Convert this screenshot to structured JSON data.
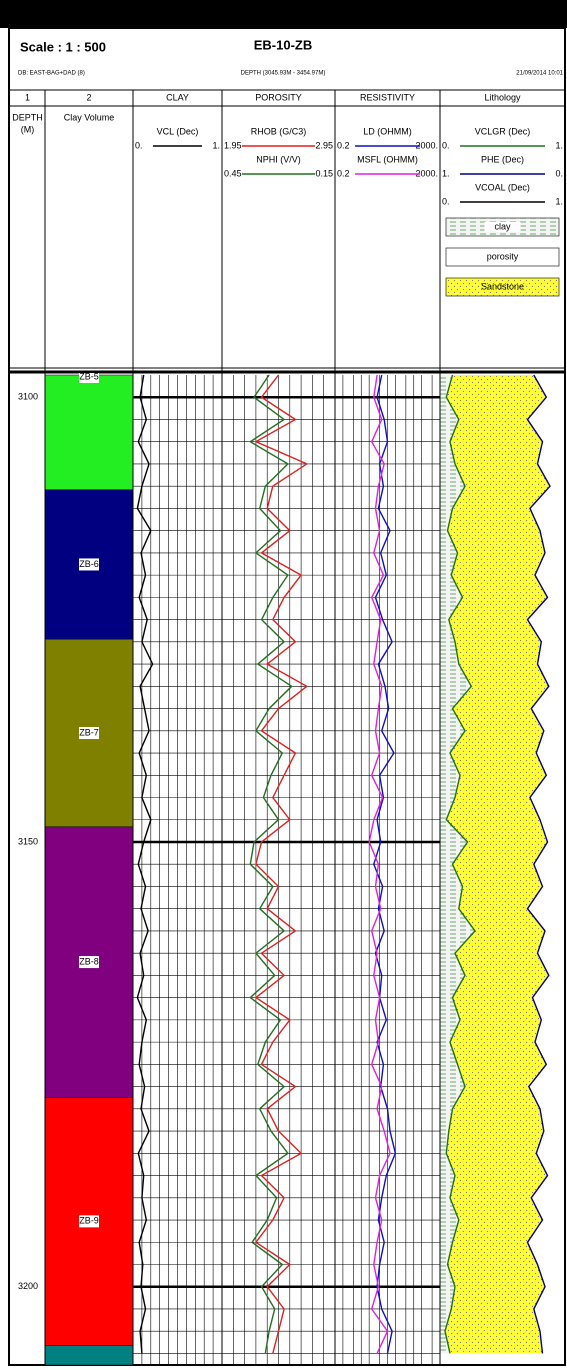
{
  "header": {
    "scale": "Scale : 1 : 500",
    "title": "EB-10-ZB",
    "database": "DB: EAST-BAG+DAD (8)",
    "depth_interval": "DEPTH (3045.93M - 3454.97M)",
    "date": "21/09/2014 10:01"
  },
  "tracks": [
    {
      "heading": "1",
      "label": "DEPTH",
      "unit": "(M)"
    },
    {
      "heading": "2",
      "label": "Clay Volume"
    },
    {
      "heading": "CLAY",
      "curves": [
        {
          "name": "VCL (Dec)",
          "color": "#000000",
          "left": {
            "value": 0,
            "label": "0."
          },
          "right": {
            "value": 1,
            "label": "1."
          },
          "values": [
            0.12,
            0.08,
            0.15,
            0.06,
            0.18,
            0.1,
            0.05,
            0.2,
            0.09,
            0.14,
            0.07,
            0.16,
            0.1,
            0.22,
            0.08,
            0.13,
            0.18,
            0.07,
            0.15,
            0.1,
            0.2,
            0.12,
            0.06,
            0.14,
            0.09,
            0.17,
            0.08,
            0.12,
            0.05,
            0.15,
            0.1,
            0.07,
            0.13,
            0.09,
            0.18,
            0.06,
            0.12,
            0.1,
            0.15,
            0.07,
            0.11,
            0.09,
            0.14,
            0.08,
            0.1
          ]
        }
      ]
    },
    {
      "heading": "POROSITY",
      "curves": [
        {
          "name": "RHOB (G/C3)",
          "color": "#e02020",
          "left": 1.95,
          "right": 2.95,
          "values": [
            2.45,
            2.3,
            2.6,
            2.25,
            2.7,
            2.4,
            2.35,
            2.55,
            2.3,
            2.65,
            2.5,
            2.4,
            2.6,
            2.35,
            2.7,
            2.45,
            2.3,
            2.6,
            2.5,
            2.4,
            2.55,
            2.3,
            2.25,
            2.45,
            2.35,
            2.6,
            2.3,
            2.5,
            2.25,
            2.55,
            2.4,
            2.3,
            2.6,
            2.35,
            2.45,
            2.65,
            2.3,
            2.5,
            2.4,
            2.25,
            2.55,
            2.35,
            2.5,
            2.45,
            2.4
          ]
        },
        {
          "name": "NPHI (V/V)",
          "color": "#207020",
          "left": 0.45,
          "right": -0.15,
          "values": [
            0.2,
            0.28,
            0.12,
            0.3,
            0.1,
            0.22,
            0.25,
            0.14,
            0.27,
            0.1,
            0.18,
            0.24,
            0.12,
            0.26,
            0.08,
            0.2,
            0.27,
            0.13,
            0.19,
            0.23,
            0.15,
            0.28,
            0.3,
            0.18,
            0.25,
            0.12,
            0.27,
            0.17,
            0.3,
            0.14,
            0.22,
            0.26,
            0.12,
            0.25,
            0.19,
            0.1,
            0.27,
            0.16,
            0.21,
            0.29,
            0.13,
            0.24,
            0.17,
            0.2,
            0.22
          ]
        }
      ]
    },
    {
      "heading": "RESISTIVITY",
      "log_scale": true,
      "curves": [
        {
          "name": "LD (OHMM)",
          "color": "#1010c0",
          "left": 0.2,
          "right": {
            "value": 2000,
            "label": "2000."
          },
          "values": [
            12,
            8,
            15,
            20,
            10,
            14,
            9,
            25,
            11,
            18,
            7,
            13,
            30,
            9,
            16,
            22,
            12,
            35,
            10,
            14,
            8,
            11,
            6,
            13,
            9,
            15,
            7,
            12,
            10,
            18,
            8,
            14,
            11,
            20,
            25,
            40,
            18,
            12,
            9,
            15,
            10,
            8,
            12,
            30,
            20
          ]
        },
        {
          "name": "MSFL (OHMM)",
          "color": "#e020e0",
          "left": 0.2,
          "right": {
            "value": 2000,
            "label": "2000."
          },
          "values": [
            8,
            6,
            12,
            5,
            15,
            9,
            7,
            10,
            6,
            14,
            5,
            11,
            8,
            6,
            12,
            9,
            7,
            10,
            5,
            13,
            6,
            4,
            9,
            7,
            11,
            5,
            8,
            6,
            10,
            7,
            9,
            5,
            12,
            8,
            15,
            25,
            10,
            7,
            12,
            8,
            6,
            9,
            5,
            20,
            8
          ]
        }
      ]
    },
    {
      "heading": "Lithology",
      "curves": [
        {
          "name": "VCLGR (Dec)",
          "color": "#207020",
          "left": {
            "value": 0,
            "label": "0."
          },
          "right": {
            "value": 1,
            "label": "1."
          },
          "values": [
            0.1,
            0.05,
            0.15,
            0.08,
            0.12,
            0.2,
            0.1,
            0.06,
            0.14,
            0.09,
            0.18,
            0.07,
            0.12,
            0.15,
            0.25,
            0.1,
            0.2,
            0.08,
            0.16,
            0.12,
            0.05,
            0.22,
            0.1,
            0.18,
            0.15,
            0.28,
            0.12,
            0.2,
            0.1,
            0.16,
            0.08,
            0.14,
            0.2,
            0.1,
            0.07,
            0.05,
            0.12,
            0.08,
            0.15,
            0.1,
            0.06,
            0.12,
            0.09,
            0.04,
            0.08
          ]
        },
        {
          "name": "PHE (Dec)",
          "color": "#000080",
          "left": {
            "value": 1,
            "label": "1."
          },
          "right": {
            "value": 0,
            "label": "0."
          },
          "values": [
            0.25,
            0.15,
            0.3,
            0.18,
            0.22,
            0.12,
            0.28,
            0.2,
            0.16,
            0.24,
            0.14,
            0.3,
            0.19,
            0.22,
            0.13,
            0.27,
            0.17,
            0.23,
            0.15,
            0.28,
            0.2,
            0.14,
            0.25,
            0.18,
            0.3,
            0.16,
            0.22,
            0.13,
            0.26,
            0.19,
            0.24,
            0.15,
            0.29,
            0.2,
            0.17,
            0.23,
            0.14,
            0.27,
            0.18,
            0.3,
            0.22,
            0.16,
            0.25,
            0.2,
            0.18
          ]
        },
        {
          "name": "VCOAL (Dec)",
          "color": "#000000",
          "left": {
            "value": 0,
            "label": "0."
          },
          "right": {
            "value": 1,
            "label": "1."
          }
        }
      ],
      "legend": [
        "clay",
        "porosity",
        "Sandstone"
      ]
    }
  ],
  "depth_range": [
    3097.5,
    3208.8
  ],
  "depth_ticks": [
    3100,
    3150,
    3200
  ],
  "zones": [
    {
      "label": "ZB-5",
      "color": "#22ee22",
      "top": 3097.5,
      "base": 3110.4
    },
    {
      "label": "ZB-6",
      "color": "#000080",
      "top": 3110.4,
      "base": 3127.2
    },
    {
      "label": "ZB-7",
      "color": "#808000",
      "top": 3127.2,
      "base": 3148.3
    },
    {
      "label": "ZB-8",
      "color": "#800080",
      "top": 3148.3,
      "base": 3178.7
    },
    {
      "label": "ZB-9",
      "color": "#ff0000",
      "top": 3178.7,
      "base": 3206.6
    },
    {
      "label": null,
      "color": "#008080",
      "top": 3206.6,
      "base": 3208.8
    }
  ],
  "logs": {
    "depth": [
      3097.5,
      3100,
      3102.5,
      3105,
      3107.5,
      3110,
      3112.5,
      3115,
      3117.5,
      3120,
      3122.5,
      3125,
      3127.5,
      3130,
      3132.5,
      3135,
      3137.5,
      3140,
      3142.5,
      3145,
      3147.5,
      3150,
      3152.5,
      3155,
      3157.5,
      3160,
      3162.5,
      3165,
      3167.5,
      3170,
      3172.5,
      3175,
      3177.5,
      3180,
      3182.5,
      3185,
      3187.5,
      3190,
      3192.5,
      3195,
      3197.5,
      3200,
      3202.5,
      3205,
      3207.5
    ]
  }
}
